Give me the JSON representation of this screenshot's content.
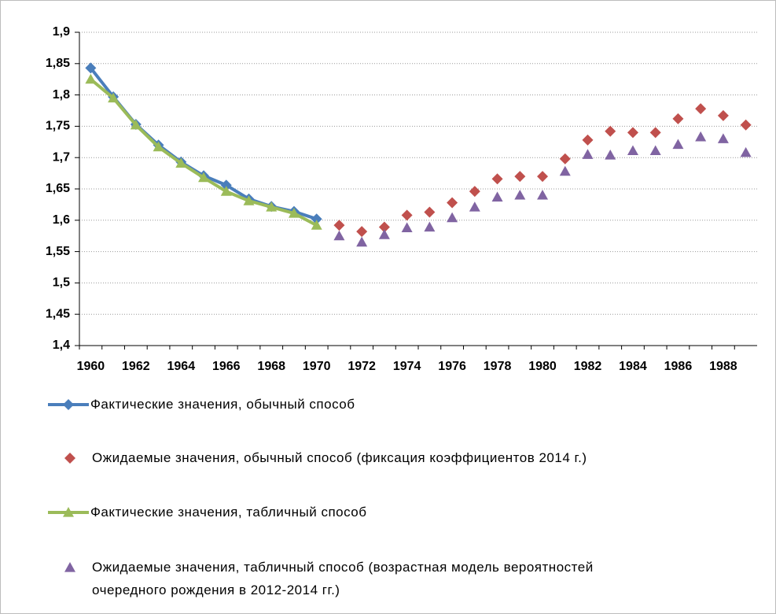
{
  "chart_data": {
    "type": "line",
    "categories": [
      "1960",
      null,
      "1962",
      null,
      "1964",
      null,
      "1966",
      null,
      "1968",
      null,
      "1970",
      null,
      "1972",
      null,
      "1974",
      null,
      "1976",
      null,
      "1978",
      null,
      "1980",
      null,
      "1982",
      null,
      "1984",
      null,
      "1986",
      null,
      "1988",
      null
    ],
    "ylim": [
      1.4,
      1.9
    ],
    "yticks": [
      {
        "value": 1.4,
        "label": "1,4"
      },
      {
        "value": 1.45,
        "label": "1,45"
      },
      {
        "value": 1.5,
        "label": "1,5"
      },
      {
        "value": 1.55,
        "label": "1,55"
      },
      {
        "value": 1.6,
        "label": "1,6"
      },
      {
        "value": 1.65,
        "label": "1,65"
      },
      {
        "value": 1.7,
        "label": "1,7"
      },
      {
        "value": 1.75,
        "label": "1,75"
      },
      {
        "value": 1.8,
        "label": "1,8"
      },
      {
        "value": 1.85,
        "label": "1,85"
      },
      {
        "value": 1.9,
        "label": "1,9"
      }
    ],
    "grid": true,
    "legend": "bottom",
    "series": [
      {
        "name": "Фактические значения, обычный способ",
        "color": "#4a7ebb",
        "marker": "diamond",
        "line": true,
        "values": [
          1.843,
          1.797,
          1.753,
          1.72,
          1.693,
          1.671,
          1.656,
          1.634,
          1.622,
          1.614,
          1.602,
          null,
          null,
          null,
          null,
          null,
          null,
          null,
          null,
          null,
          null,
          null,
          null,
          null,
          null,
          null,
          null,
          null,
          null,
          null
        ]
      },
      {
        "name": "Ожидаемые значения, обычный способ (фиксация коэффициентов 2014 г.)",
        "color": "#c0504d",
        "marker": "diamond",
        "line": false,
        "values": [
          null,
          null,
          null,
          null,
          null,
          null,
          null,
          null,
          null,
          null,
          null,
          1.592,
          1.582,
          1.589,
          1.608,
          1.613,
          1.628,
          1.646,
          1.666,
          1.67,
          1.67,
          1.698,
          1.728,
          1.742,
          1.74,
          1.74,
          1.762,
          1.778,
          1.767,
          1.752
        ]
      },
      {
        "name": "Фактические значения, табличный способ",
        "color": "#9bbb59",
        "marker": "triangle",
        "line": true,
        "values": [
          1.825,
          1.795,
          1.752,
          1.717,
          1.691,
          1.668,
          1.646,
          1.631,
          1.621,
          1.611,
          1.592,
          null,
          null,
          null,
          null,
          null,
          null,
          null,
          null,
          null,
          null,
          null,
          null,
          null,
          null,
          null,
          null,
          null,
          null,
          null
        ]
      },
      {
        "name": "Ожидаемые значения, табличный способ (возрастная модель вероятностей очередного рождения в 2012-2014 гг.)",
        "color": "#8064a2",
        "marker": "triangle",
        "line": false,
        "values": [
          null,
          null,
          null,
          null,
          null,
          null,
          null,
          null,
          null,
          null,
          null,
          1.575,
          1.565,
          1.577,
          1.588,
          1.589,
          1.604,
          1.621,
          1.637,
          1.64,
          1.64,
          1.678,
          1.705,
          1.704,
          1.711,
          1.711,
          1.721,
          1.733,
          1.73,
          1.708
        ]
      }
    ]
  }
}
